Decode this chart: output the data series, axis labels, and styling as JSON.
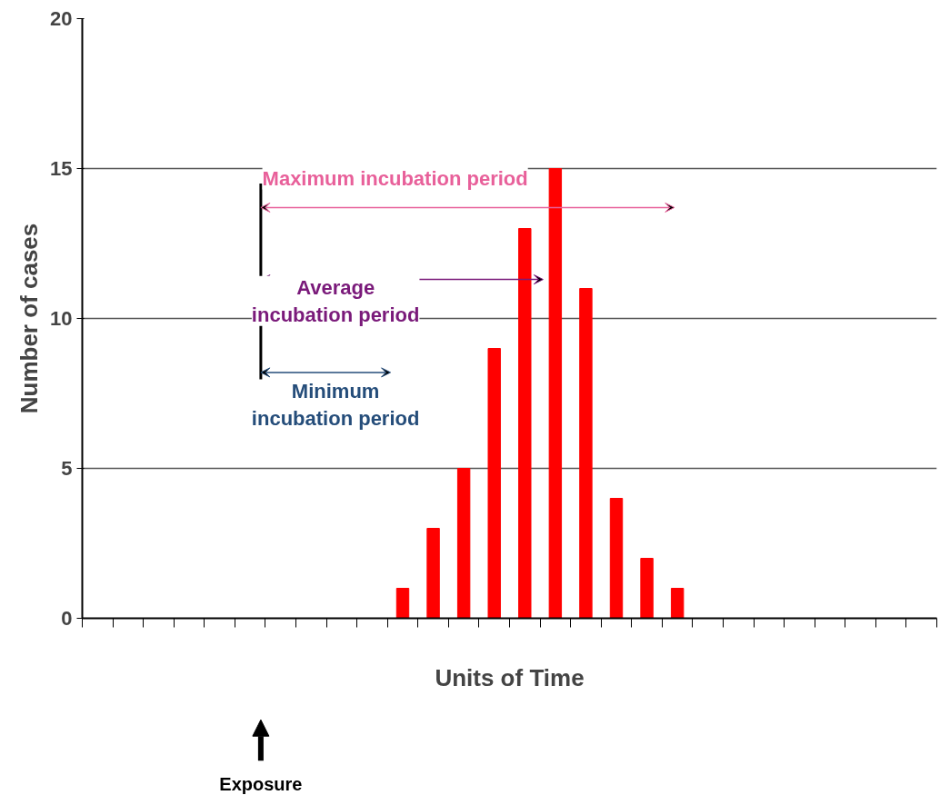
{
  "chart_data": {
    "type": "bar",
    "categories": [
      null,
      null,
      null,
      null,
      null,
      null,
      null,
      null,
      null,
      null,
      null,
      null,
      null,
      null,
      null,
      null,
      null,
      null,
      null,
      null,
      null,
      null,
      null,
      null,
      null,
      null,
      null,
      null
    ],
    "values": [
      0,
      0,
      0,
      0,
      0,
      0,
      0,
      0,
      0,
      0,
      1,
      3,
      5,
      9,
      13,
      15,
      11,
      4,
      2,
      1,
      0,
      0,
      0,
      0,
      0,
      0,
      0,
      0
    ],
    "color": "#ff0000",
    "xlabel": "Units of Time",
    "ylabel": "Number of cases",
    "ylim": [
      0,
      20
    ],
    "yticks": [
      0,
      5,
      10,
      15,
      20
    ],
    "grid": "y",
    "tick_labels": "y",
    "annotations": [
      "Maximum incubation period",
      "Average incubation period",
      "Minimum incubation period",
      "Exposure"
    ]
  }
}
